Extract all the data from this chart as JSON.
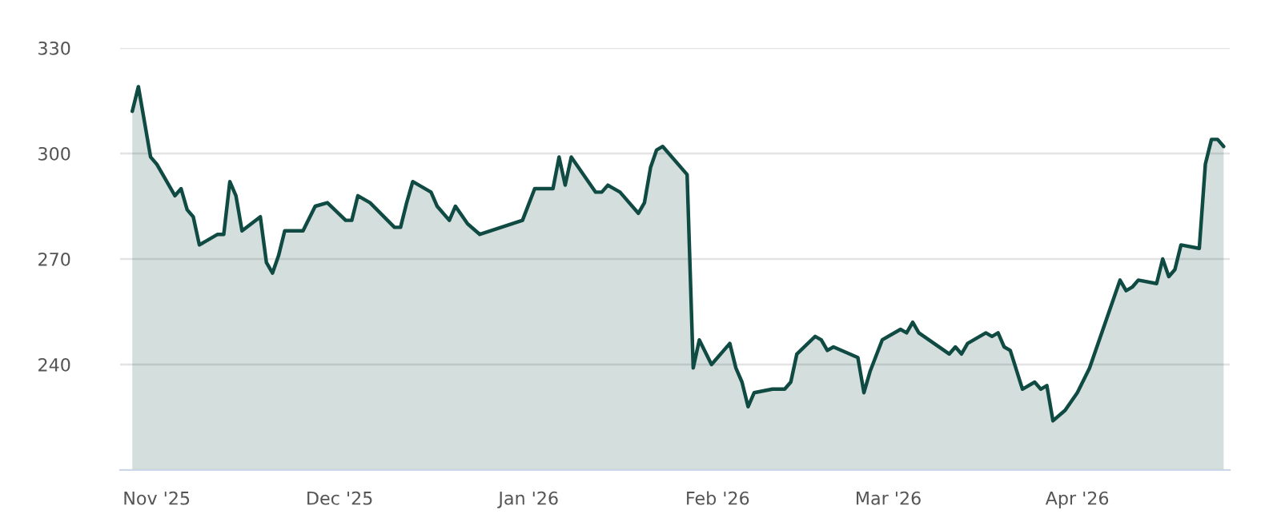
{
  "chart_data": {
    "type": "area",
    "x": [
      "2025-10-28",
      "2025-10-29",
      "2025-10-31",
      "2025-11-01",
      "2025-11-04",
      "2025-11-05",
      "2025-11-06",
      "2025-11-07",
      "2025-11-08",
      "2025-11-11",
      "2025-11-12",
      "2025-11-13",
      "2025-11-14",
      "2025-11-15",
      "2025-11-18",
      "2025-11-19",
      "2025-11-20",
      "2025-11-21",
      "2025-11-22",
      "2025-11-25",
      "2025-11-27",
      "2025-11-29",
      "2025-12-02",
      "2025-12-03",
      "2025-12-04",
      "2025-12-06",
      "2025-12-10",
      "2025-12-11",
      "2025-12-12",
      "2025-12-13",
      "2025-12-16",
      "2025-12-17",
      "2025-12-19",
      "2025-12-20",
      "2025-12-22",
      "2025-12-24",
      "2025-12-31",
      "2026-01-02",
      "2026-01-05",
      "2026-01-06",
      "2026-01-07",
      "2026-01-08",
      "2026-01-12",
      "2026-01-13",
      "2026-01-14",
      "2026-01-16",
      "2026-01-19",
      "2026-01-20",
      "2026-01-21",
      "2026-01-22",
      "2026-01-23",
      "2026-01-27",
      "2026-01-28",
      "2026-01-29",
      "2026-01-31",
      "2026-02-03",
      "2026-02-04",
      "2026-02-05",
      "2026-02-06",
      "2026-02-07",
      "2026-02-10",
      "2026-02-12",
      "2026-02-13",
      "2026-02-14",
      "2026-02-17",
      "2026-02-18",
      "2026-02-19",
      "2026-02-20",
      "2026-02-24",
      "2026-02-25",
      "2026-02-26",
      "2026-02-28",
      "2026-03-03",
      "2026-03-04",
      "2026-03-05",
      "2026-03-06",
      "2026-03-11",
      "2026-03-12",
      "2026-03-13",
      "2026-03-14",
      "2026-03-17",
      "2026-03-18",
      "2026-03-19",
      "2026-03-20",
      "2026-03-21",
      "2026-03-23",
      "2026-03-25",
      "2026-03-26",
      "2026-03-27",
      "2026-03-28",
      "2026-03-30",
      "2026-04-01",
      "2026-04-03",
      "2026-04-08",
      "2026-04-09",
      "2026-04-10",
      "2026-04-11",
      "2026-04-14",
      "2026-04-15",
      "2026-04-16",
      "2026-04-17",
      "2026-04-18",
      "2026-04-21",
      "2026-04-22",
      "2026-04-23",
      "2026-04-24",
      "2026-04-25"
    ],
    "series": [
      {
        "color": "#0f4a43",
        "values": [
          312,
          319,
          299,
          297,
          288,
          290,
          284,
          282,
          274,
          277,
          277,
          292,
          288,
          278,
          282,
          269,
          266,
          271,
          278,
          278,
          285,
          286,
          281,
          281,
          288,
          286,
          279,
          279,
          286,
          292,
          289,
          285,
          281,
          285,
          280,
          277,
          281,
          290,
          290,
          299,
          291,
          299,
          289,
          289,
          291,
          289,
          283,
          286,
          296,
          301,
          302,
          294,
          239,
          247,
          240,
          246,
          239,
          235,
          228,
          232,
          233,
          233,
          235,
          243,
          248,
          247,
          244,
          245,
          242,
          232,
          238,
          247,
          250,
          249,
          252,
          249,
          243,
          245,
          243,
          246,
          249,
          248,
          249,
          245,
          244,
          233,
          235,
          233,
          234,
          224,
          227,
          232,
          239,
          264,
          261,
          262,
          264,
          263,
          270,
          265,
          267,
          274,
          273,
          297,
          304,
          304,
          302
        ]
      }
    ],
    "xlim": [
      "2025-10-26",
      "2026-04-26"
    ],
    "xticks": [
      {
        "value": "2025-11-01",
        "label": "Nov '25"
      },
      {
        "value": "2025-12-01",
        "label": "Dec '25"
      },
      {
        "value": "2026-01-01",
        "label": "Jan '26"
      },
      {
        "value": "2026-02-01",
        "label": "Feb '26"
      },
      {
        "value": "2026-03-01",
        "label": "Mar '26"
      },
      {
        "value": "2026-04-01",
        "label": "Apr '26"
      }
    ],
    "ylim": [
      210,
      330
    ],
    "yticks": [
      {
        "value": 210,
        "label": null
      },
      240,
      270,
      300,
      330
    ],
    "grid": "y",
    "legend": false,
    "marker": "none",
    "line_style": "solid"
  }
}
